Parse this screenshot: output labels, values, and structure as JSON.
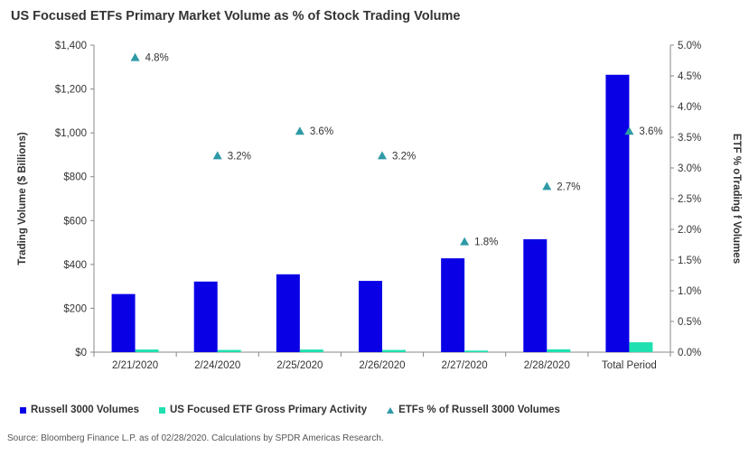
{
  "title": "US Focused ETFs Primary Market Volume as % of Stock Trading Volume",
  "source": "Source: Bloomberg Finance L.P. as of 02/28/2020.  Calculations by SPDR Americas Research.",
  "colors": {
    "russell": "#0a00e6",
    "etf": "#1fe0b0",
    "pct": "#2e9aa6"
  },
  "chart_data": {
    "type": "bar",
    "categories": [
      "2/21/2020",
      "2/24/2020",
      "2/25/2020",
      "2/26/2020",
      "2/27/2020",
      "2/28/2020",
      "Total Period"
    ],
    "series": [
      {
        "name": "Russell 3000 Volumes",
        "type": "bar",
        "axis": "left",
        "values": [
          265,
          322,
          355,
          325,
          428,
          515,
          1265
        ]
      },
      {
        "name": "US Focused ETF Gross Primary Activity",
        "type": "bar",
        "axis": "left",
        "values": [
          12,
          10,
          12,
          10,
          7,
          13,
          45
        ]
      },
      {
        "name": "ETFs % of Russell 3000 Volumes",
        "type": "scatter",
        "marker": "triangle",
        "axis": "right",
        "values": [
          4.8,
          3.2,
          3.6,
          3.2,
          1.8,
          2.7,
          3.6
        ],
        "labels": [
          "4.8%",
          "3.2%",
          "3.6%",
          "3.2%",
          "1.8%",
          "2.7%",
          "3.6%"
        ]
      }
    ],
    "ylabel": "Trading Volume ($ Billions)",
    "y2label": "ETF % oTrading f Volumes",
    "ylim": [
      0,
      1400
    ],
    "y2lim": [
      0,
      5.0
    ],
    "yticks": [
      "$0",
      "$200",
      "$400",
      "$600",
      "$800",
      "$1,000",
      "$1,200",
      "$1,400"
    ],
    "y2ticks": [
      "0.0%",
      "0.5%",
      "1.0%",
      "1.5%",
      "2.0%",
      "2.5%",
      "3.0%",
      "3.5%",
      "4.0%",
      "4.5%",
      "5.0%"
    ],
    "grid": false,
    "legend_position": "bottom"
  }
}
